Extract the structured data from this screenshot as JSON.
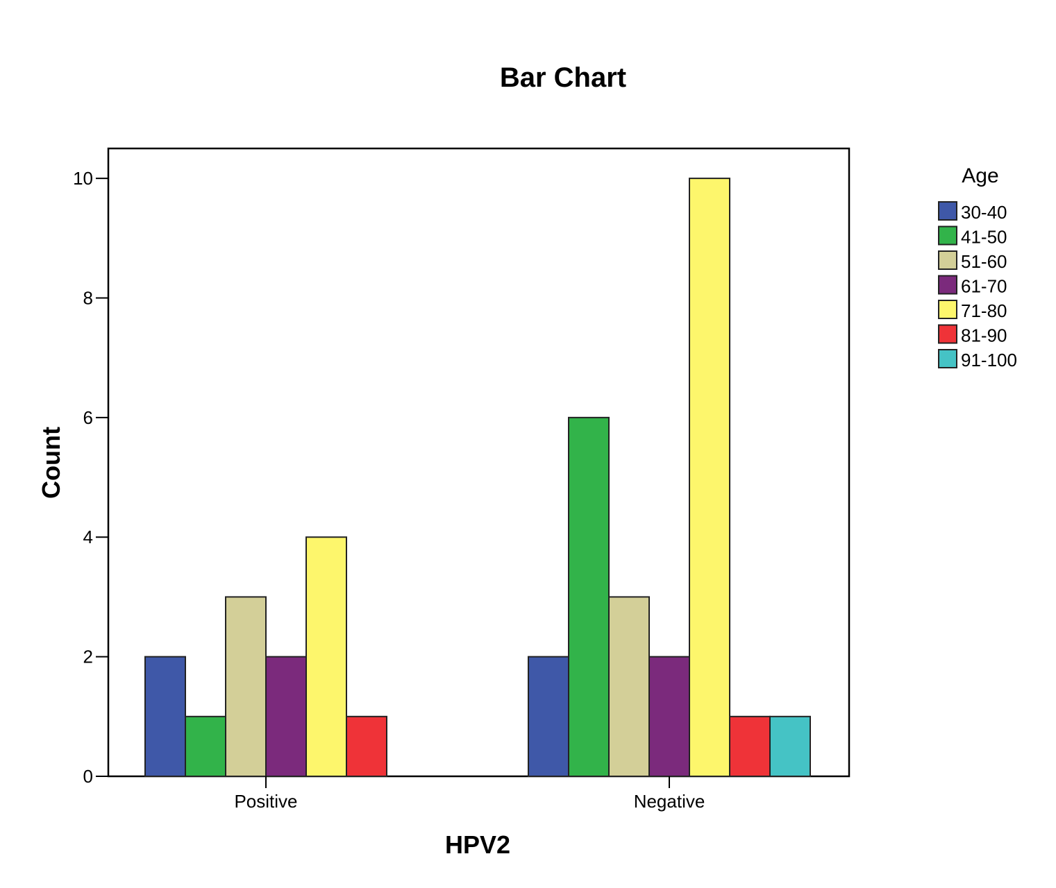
{
  "chart_data": {
    "type": "bar",
    "title": "Bar Chart",
    "xlabel": "HPV2",
    "ylabel": "Count",
    "categories": [
      "Positive",
      "Negative"
    ],
    "ylim": [
      0,
      10.5
    ],
    "yticks": [
      0,
      2,
      4,
      6,
      8,
      10
    ],
    "grid": false,
    "legend": {
      "title": "Age",
      "placement": "right"
    },
    "series": [
      {
        "name": "30-40",
        "color": "#3f58a8",
        "values": [
          2,
          2
        ]
      },
      {
        "name": "41-50",
        "color": "#32b34a",
        "values": [
          1,
          6
        ]
      },
      {
        "name": "51-60",
        "color": "#d3cf98",
        "values": [
          3,
          3
        ]
      },
      {
        "name": "61-70",
        "color": "#7b2a7c",
        "values": [
          2,
          2
        ]
      },
      {
        "name": "71-80",
        "color": "#fdf66c",
        "values": [
          4,
          10
        ]
      },
      {
        "name": "81-90",
        "color": "#ef3338",
        "values": [
          1,
          1
        ]
      },
      {
        "name": "91-100",
        "color": "#45c3c5",
        "values": [
          0,
          1
        ]
      }
    ]
  }
}
